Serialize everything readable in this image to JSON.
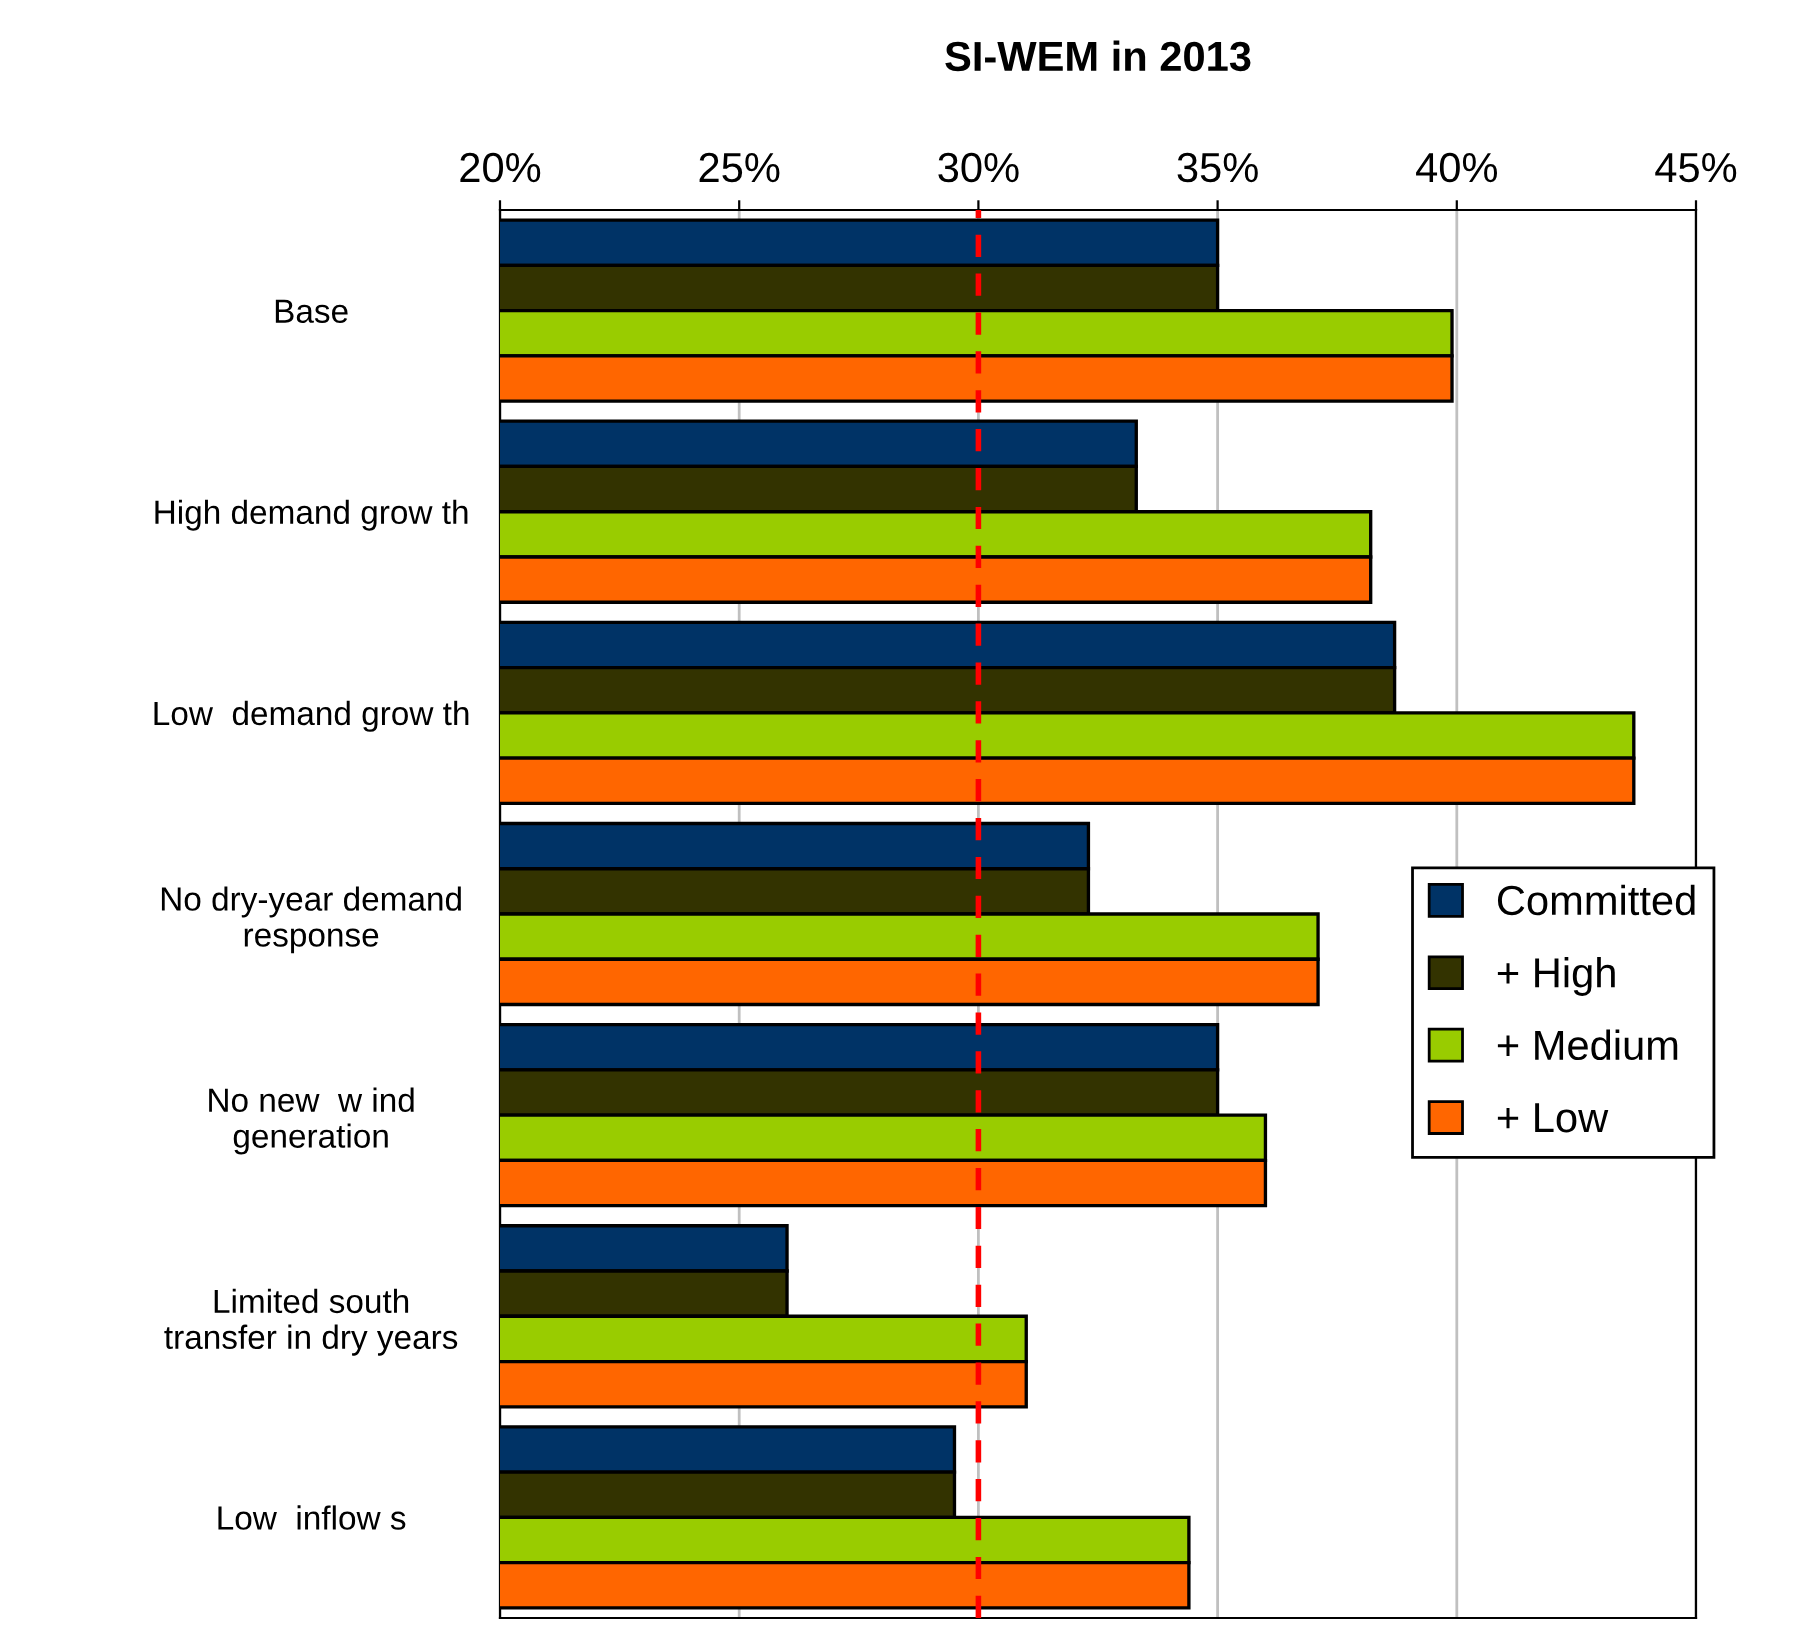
{
  "chart_data": {
    "type": "bar",
    "orientation": "horizontal",
    "title": "SI-WEM in 2013",
    "categories": [
      "Base",
      "High demand grow th",
      "Low  demand grow th",
      "No dry-year demand\nresponse",
      "No new  w ind\ngeneration",
      "Limited south\ntransfer in dry years",
      "Low  inflow s"
    ],
    "series": [
      {
        "name": "Committed",
        "color": "#003366",
        "values": [
          35.0,
          33.3,
          38.7,
          32.3,
          35.0,
          26.0,
          29.5
        ]
      },
      {
        "name": "+ High",
        "color": "#333300",
        "values": [
          35.0,
          33.3,
          38.7,
          32.3,
          35.0,
          26.0,
          29.5
        ]
      },
      {
        "name": "+ Medium",
        "color": "#99cc00",
        "values": [
          39.9,
          38.2,
          43.7,
          37.1,
          36.0,
          31.0,
          34.4
        ]
      },
      {
        "name": "+ Low",
        "color": "#ff6600",
        "values": [
          39.9,
          38.2,
          43.7,
          37.1,
          36.0,
          31.0,
          34.4
        ]
      }
    ],
    "xlim": [
      20,
      45
    ],
    "xticks": [
      {
        "value": 20,
        "label": "20%"
      },
      {
        "value": 25,
        "label": "25%"
      },
      {
        "value": 30,
        "label": "30%"
      },
      {
        "value": 35,
        "label": "35%"
      },
      {
        "value": 40,
        "label": "40%"
      },
      {
        "value": 45,
        "label": "45%"
      }
    ],
    "ref_lines": [
      {
        "axis": "x",
        "value": 30,
        "label": null,
        "color": "#ff0000",
        "line_style": "dashed"
      }
    ],
    "grid": "x",
    "legend": "right"
  }
}
